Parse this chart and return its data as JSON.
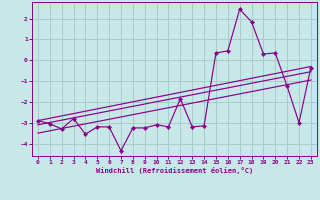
{
  "xlabel": "Windchill (Refroidissement éolien,°C)",
  "ylabel": "",
  "background_color": "#c8e8e8",
  "grid_color": "#a8cccc",
  "line_color": "#880088",
  "xlim": [
    -0.5,
    23.5
  ],
  "ylim": [
    -4.6,
    2.8
  ],
  "xticks": [
    0,
    1,
    2,
    3,
    4,
    5,
    6,
    7,
    8,
    9,
    10,
    11,
    12,
    13,
    14,
    15,
    16,
    17,
    18,
    19,
    20,
    21,
    22,
    23
  ],
  "yticks": [
    -4,
    -3,
    -2,
    -1,
    0,
    1,
    2
  ],
  "series1_x": [
    0,
    1,
    2,
    3,
    4,
    5,
    6,
    7,
    8,
    9,
    10,
    11,
    12,
    13,
    14,
    15,
    16,
    17,
    18,
    19,
    20,
    21,
    22,
    23
  ],
  "series1_y": [
    -2.9,
    -3.05,
    -3.3,
    -2.8,
    -3.55,
    -3.2,
    -3.2,
    -4.35,
    -3.25,
    -3.25,
    -3.1,
    -3.2,
    -1.85,
    -3.2,
    -3.15,
    0.35,
    0.45,
    2.45,
    1.85,
    0.3,
    0.35,
    -1.25,
    -3.0,
    -0.35
  ],
  "series2_x": [
    0,
    23
  ],
  "series2_y": [
    -2.9,
    -0.3
  ],
  "series3_x": [
    0,
    23
  ],
  "series3_y": [
    -3.1,
    -0.55
  ],
  "series4_x": [
    0,
    23
  ],
  "series4_y": [
    -3.5,
    -0.95
  ]
}
